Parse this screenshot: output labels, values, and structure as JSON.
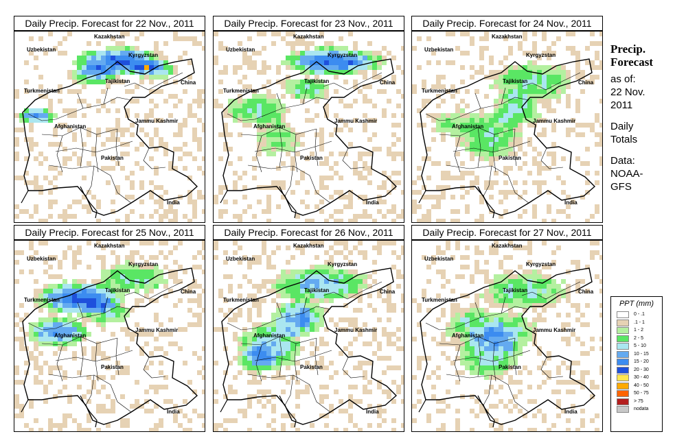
{
  "panels": [
    {
      "title": "Daily Precip. Forecast for  22 Nov., 2011"
    },
    {
      "title": "Daily Precip. Forecast for  23 Nov., 2011"
    },
    {
      "title": "Daily Precip. Forecast for  24 Nov., 2011"
    },
    {
      "title": "Daily Precip. Forecast for  25 Nov., 2011"
    },
    {
      "title": "Daily Precip. Forecast for  26 Nov., 2011"
    },
    {
      "title": "Daily Precip. Forecast for  27 Nov., 2011"
    }
  ],
  "place_labels": {
    "kazakhstan": "Kazakhstan",
    "uzbekistan": "Uzbekistan",
    "kyrgyzstan": "Kyrgyzstan",
    "tajikistan": "Tajikistan",
    "turkmenistan": "Turkmenistan",
    "china": "China",
    "afghanistan": "Afghanistan",
    "jammu_kashmir": "Jammu Kashmir",
    "pakistan": "Pakistan",
    "india": "India"
  },
  "sidebar": {
    "heading_line1": "Precip.",
    "heading_line2": "Forecast",
    "asof_line1": "as of:",
    "asof_line2": "22 Nov.",
    "asof_line3": "2011",
    "totals_line1": "Daily",
    "totals_line2": "Totals",
    "data_line1": "Data:",
    "data_line2": "NOAA-",
    "data_line3": "GFS"
  },
  "legend": {
    "title": "PPT (mm)",
    "entries": [
      {
        "label": "0 - .1",
        "color": "#ffffff"
      },
      {
        "label": ".1 - 1",
        "color": "#e6d2b4"
      },
      {
        "label": "1 - 2",
        "color": "#b4f0a0"
      },
      {
        "label": "2 - 5",
        "color": "#5ae664"
      },
      {
        "label": "5 - 10",
        "color": "#aae6f0"
      },
      {
        "label": "10 - 15",
        "color": "#64aaf0"
      },
      {
        "label": "15 - 20",
        "color": "#3c8cf0"
      },
      {
        "label": "20 - 30",
        "color": "#1e50dc"
      },
      {
        "label": "30 - 40",
        "color": "#ffe650"
      },
      {
        "label": "40 - 50",
        "color": "#ffaa00"
      },
      {
        "label": "50 - 75",
        "color": "#ff6400"
      },
      {
        "label": "> 75",
        "color": "#b41e1e"
      },
      {
        "label": "nodata",
        "color": "#c8c8c8"
      }
    ]
  }
}
